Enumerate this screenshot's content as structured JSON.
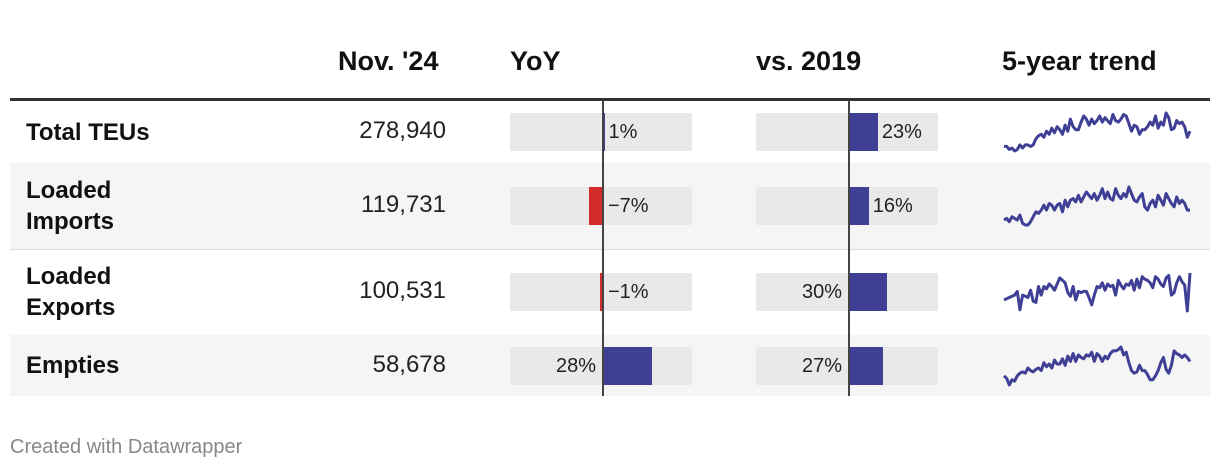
{
  "chart_data": {
    "type": "table",
    "columns": [
      "",
      "Nov. '24",
      "YoY",
      "vs. 2019",
      "5-year trend"
    ],
    "rows": [
      {
        "label": "Total TEUs",
        "value": "278,940",
        "yoy": 1,
        "yoy_label": "1%",
        "vs2019": 23,
        "vs2019_label": "23%",
        "trend": [
          4,
          4,
          2,
          3,
          1,
          2,
          5,
          3,
          5,
          5,
          4,
          5,
          9,
          11,
          12,
          10,
          14,
          12,
          16,
          13,
          17,
          15,
          12,
          18,
          14,
          22,
          17,
          15,
          15,
          20,
          24,
          22,
          18,
          22,
          19,
          21,
          24,
          20,
          23,
          21,
          19,
          25,
          21,
          20,
          22,
          25,
          24,
          19,
          14,
          18,
          17,
          12,
          15,
          15,
          17,
          20,
          18,
          24,
          16,
          20,
          18,
          26,
          23,
          15,
          16,
          21,
          19,
          20,
          17,
          10,
          14
        ]
      },
      {
        "label": "Loaded Imports",
        "value": "119,731",
        "yoy": -7,
        "yoy_label": "−7%",
        "vs2019": 16,
        "vs2019_label": "16%",
        "trend": [
          6,
          7,
          5,
          8,
          7,
          6,
          9,
          4,
          3,
          3,
          5,
          8,
          11,
          10,
          12,
          15,
          12,
          16,
          15,
          12,
          15,
          16,
          11,
          18,
          14,
          18,
          19,
          17,
          21,
          17,
          20,
          23,
          21,
          19,
          22,
          18,
          21,
          25,
          19,
          23,
          19,
          18,
          25,
          21,
          19,
          22,
          20,
          26,
          22,
          18,
          17,
          20,
          22,
          14,
          12,
          16,
          18,
          14,
          21,
          18,
          15,
          22,
          19,
          16,
          14,
          20,
          16,
          18,
          16,
          12,
          12
        ]
      },
      {
        "label": "Loaded Exports",
        "value": "100,531",
        "yoy": -1,
        "yoy_label": "−1%",
        "vs2019": 30,
        "vs2019_label": "30%",
        "trend": [
          14,
          15,
          16,
          17,
          18,
          21,
          6,
          18,
          17,
          16,
          22,
          13,
          12,
          25,
          18,
          25,
          23,
          27,
          25,
          22,
          27,
          32,
          30,
          28,
          20,
          17,
          25,
          14,
          21,
          20,
          21,
          21,
          16,
          10,
          18,
          25,
          24,
          28,
          22,
          27,
          25,
          26,
          18,
          30,
          26,
          23,
          27,
          26,
          30,
          22,
          31,
          24,
          33,
          31,
          30,
          28,
          24,
          33,
          31,
          27,
          25,
          32,
          34,
          18,
          20,
          28,
          33,
          29,
          26,
          5,
          36
        ]
      },
      {
        "label": "Empties",
        "value": "58,678",
        "yoy": 28,
        "yoy_label": "28%",
        "vs2019": 27,
        "vs2019_label": "27%",
        "trend": [
          8,
          6,
          1,
          5,
          4,
          8,
          10,
          11,
          10,
          14,
          12,
          11,
          13,
          14,
          12,
          18,
          15,
          17,
          14,
          20,
          17,
          17,
          21,
          16,
          23,
          19,
          25,
          19,
          24,
          22,
          21,
          24,
          23,
          26,
          19,
          25,
          23,
          19,
          23,
          21,
          25,
          27,
          27,
          28,
          30,
          24,
          26,
          18,
          12,
          10,
          11,
          16,
          12,
          12,
          9,
          5,
          5,
          8,
          12,
          18,
          22,
          13,
          10,
          16,
          27,
          25,
          24,
          22,
          24,
          22,
          19
        ]
      }
    ]
  },
  "credit": "Created with Datawrapper",
  "colors": {
    "positive": "#3f3f96",
    "negative": "#d52a2a",
    "track": "#e9e9e9"
  }
}
